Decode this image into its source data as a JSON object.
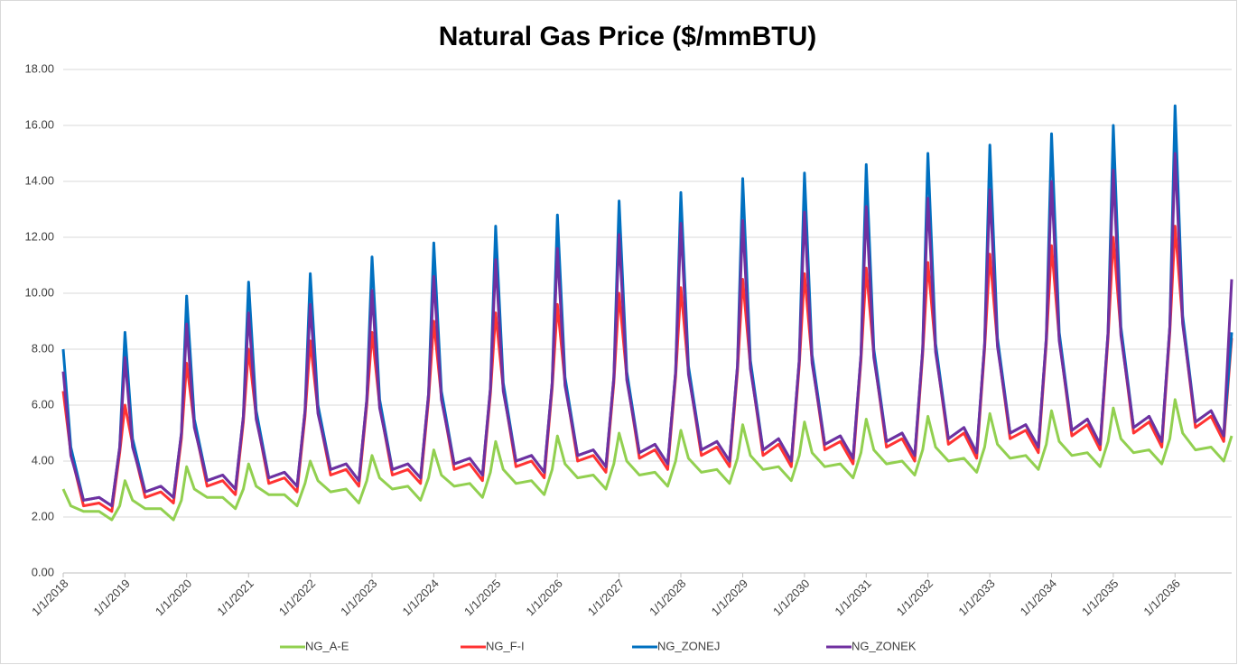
{
  "chart_data": {
    "type": "line",
    "title": "Natural Gas Price ($/mmBTU)",
    "ylim": [
      0,
      18
    ],
    "yticks": [
      {
        "value": 0,
        "label": "0.00"
      },
      {
        "value": 2,
        "label": "2.00"
      },
      {
        "value": 4,
        "label": "4.00"
      },
      {
        "value": 6,
        "label": "6.00"
      },
      {
        "value": 8,
        "label": "8.00"
      },
      {
        "value": 10,
        "label": "10.00"
      },
      {
        "value": 12,
        "label": "12.00"
      },
      {
        "value": 14,
        "label": "14.00"
      },
      {
        "value": 16,
        "label": "16.00"
      },
      {
        "value": 18,
        "label": "18.00"
      }
    ],
    "xlim": [
      "2018-01-01",
      "2036-12-01"
    ],
    "xticks": [
      {
        "value": "2018-01-01",
        "label": "1/1/2018"
      },
      {
        "value": "2019-01-01",
        "label": "1/1/2019"
      },
      {
        "value": "2020-01-01",
        "label": "1/1/2020"
      },
      {
        "value": "2021-01-01",
        "label": "1/1/2021"
      },
      {
        "value": "2022-01-01",
        "label": "1/1/2022"
      },
      {
        "value": "2023-01-01",
        "label": "1/1/2023"
      },
      {
        "value": "2024-01-01",
        "label": "1/1/2024"
      },
      {
        "value": "2025-01-01",
        "label": "1/1/2025"
      },
      {
        "value": "2026-01-01",
        "label": "1/1/2026"
      },
      {
        "value": "2027-01-01",
        "label": "1/1/2027"
      },
      {
        "value": "2028-01-01",
        "label": "1/1/2028"
      },
      {
        "value": "2029-01-01",
        "label": "1/1/2029"
      },
      {
        "value": "2030-01-01",
        "label": "1/1/2030"
      },
      {
        "value": "2031-01-01",
        "label": "1/1/2031"
      },
      {
        "value": "2032-01-01",
        "label": "1/1/2032"
      },
      {
        "value": "2033-01-01",
        "label": "1/1/2033"
      },
      {
        "value": "2034-01-01",
        "label": "1/1/2034"
      },
      {
        "value": "2035-01-01",
        "label": "1/1/2035"
      },
      {
        "value": "2036-01-01",
        "label": "1/1/2036"
      }
    ],
    "grid": true,
    "legend": "bottom",
    "x": [
      "2018-01-01",
      "2018-02-15",
      "2018-05-01",
      "2018-08-01",
      "2018-10-15",
      "2018-12-01",
      "2019-01-01",
      "2019-02-15",
      "2019-05-01",
      "2019-08-01",
      "2019-10-15",
      "2019-12-01",
      "2020-01-01",
      "2020-02-15",
      "2020-05-01",
      "2020-08-01",
      "2020-10-15",
      "2020-12-01",
      "2021-01-01",
      "2021-02-15",
      "2021-05-01",
      "2021-08-01",
      "2021-10-15",
      "2021-12-01",
      "2022-01-01",
      "2022-02-15",
      "2022-05-01",
      "2022-08-01",
      "2022-10-15",
      "2022-12-01",
      "2023-01-01",
      "2023-02-15",
      "2023-05-01",
      "2023-08-01",
      "2023-10-15",
      "2023-12-01",
      "2024-01-01",
      "2024-02-15",
      "2024-05-01",
      "2024-08-01",
      "2024-10-15",
      "2024-12-01",
      "2025-01-01",
      "2025-02-15",
      "2025-05-01",
      "2025-08-01",
      "2025-10-15",
      "2025-12-01",
      "2026-01-01",
      "2026-02-15",
      "2026-05-01",
      "2026-08-01",
      "2026-10-15",
      "2026-12-01",
      "2027-01-01",
      "2027-02-15",
      "2027-05-01",
      "2027-08-01",
      "2027-10-15",
      "2027-12-01",
      "2028-01-01",
      "2028-02-15",
      "2028-05-01",
      "2028-08-01",
      "2028-10-15",
      "2028-12-01",
      "2029-01-01",
      "2029-02-15",
      "2029-05-01",
      "2029-08-01",
      "2029-10-15",
      "2029-12-01",
      "2030-01-01",
      "2030-02-15",
      "2030-05-01",
      "2030-08-01",
      "2030-10-15",
      "2030-12-01",
      "2031-01-01",
      "2031-02-15",
      "2031-05-01",
      "2031-08-01",
      "2031-10-15",
      "2031-12-01",
      "2032-01-01",
      "2032-02-15",
      "2032-05-01",
      "2032-08-01",
      "2032-10-15",
      "2032-12-01",
      "2033-01-01",
      "2033-02-15",
      "2033-05-01",
      "2033-08-01",
      "2033-10-15",
      "2033-12-01",
      "2034-01-01",
      "2034-02-15",
      "2034-05-01",
      "2034-08-01",
      "2034-10-15",
      "2034-12-01",
      "2035-01-01",
      "2035-02-15",
      "2035-05-01",
      "2035-08-01",
      "2035-10-15",
      "2035-12-01",
      "2036-01-01",
      "2036-02-15",
      "2036-05-01",
      "2036-08-01",
      "2036-10-15",
      "2036-12-01"
    ],
    "series": [
      {
        "name": "NG_A-E",
        "color": "#92d050",
        "values": [
          3.0,
          2.4,
          2.2,
          2.2,
          1.9,
          2.4,
          3.3,
          2.6,
          2.3,
          2.3,
          1.9,
          2.6,
          3.8,
          3.0,
          2.7,
          2.7,
          2.3,
          3.0,
          3.9,
          3.1,
          2.8,
          2.8,
          2.4,
          3.2,
          4.0,
          3.3,
          2.9,
          3.0,
          2.5,
          3.3,
          4.2,
          3.4,
          3.0,
          3.1,
          2.6,
          3.4,
          4.4,
          3.5,
          3.1,
          3.2,
          2.7,
          3.6,
          4.7,
          3.7,
          3.2,
          3.3,
          2.8,
          3.7,
          4.9,
          3.9,
          3.4,
          3.5,
          3.0,
          3.9,
          5.0,
          4.0,
          3.5,
          3.6,
          3.1,
          4.0,
          5.1,
          4.1,
          3.6,
          3.7,
          3.2,
          4.1,
          5.3,
          4.2,
          3.7,
          3.8,
          3.3,
          4.2,
          5.4,
          4.3,
          3.8,
          3.9,
          3.4,
          4.3,
          5.5,
          4.4,
          3.9,
          4.0,
          3.5,
          4.4,
          5.6,
          4.5,
          4.0,
          4.1,
          3.6,
          4.5,
          5.7,
          4.6,
          4.1,
          4.2,
          3.7,
          4.6,
          5.8,
          4.7,
          4.2,
          4.3,
          3.8,
          4.7,
          5.9,
          4.8,
          4.3,
          4.4,
          3.9,
          4.8,
          6.2,
          5.0,
          4.4,
          4.5,
          4.0,
          4.9
        ]
      },
      {
        "name": "NG_F-I",
        "color": "#ff3333",
        "values": [
          6.5,
          4.3,
          2.4,
          2.5,
          2.2,
          4.3,
          6.0,
          4.6,
          2.7,
          2.9,
          2.5,
          4.8,
          7.5,
          5.3,
          3.1,
          3.3,
          2.8,
          5.4,
          8.0,
          5.6,
          3.2,
          3.4,
          2.9,
          5.6,
          8.3,
          5.8,
          3.5,
          3.7,
          3.1,
          6.0,
          8.6,
          6.0,
          3.5,
          3.7,
          3.2,
          6.2,
          9.0,
          6.3,
          3.7,
          3.9,
          3.3,
          6.4,
          9.3,
          6.6,
          3.8,
          4.0,
          3.4,
          6.6,
          9.6,
          6.8,
          4.0,
          4.2,
          3.6,
          6.8,
          10.0,
          7.0,
          4.1,
          4.4,
          3.7,
          7.0,
          10.2,
          7.2,
          4.2,
          4.5,
          3.8,
          7.2,
          10.5,
          7.4,
          4.2,
          4.6,
          3.8,
          7.4,
          10.7,
          7.6,
          4.4,
          4.7,
          3.9,
          7.6,
          10.9,
          7.8,
          4.5,
          4.8,
          4.0,
          7.8,
          11.1,
          8.0,
          4.6,
          5.0,
          4.1,
          8.0,
          11.4,
          8.2,
          4.8,
          5.1,
          4.3,
          8.2,
          11.7,
          8.4,
          4.9,
          5.3,
          4.4,
          8.4,
          12.0,
          8.6,
          5.0,
          5.4,
          4.5,
          8.6,
          12.4,
          9.0,
          5.2,
          5.6,
          4.7,
          8.4
        ]
      },
      {
        "name": "NG_ZONEJ",
        "color": "#0070c0",
        "values": [
          8.0,
          4.5,
          2.6,
          2.7,
          2.4,
          4.5,
          8.6,
          4.8,
          2.9,
          3.1,
          2.7,
          5.0,
          9.9,
          5.5,
          3.3,
          3.5,
          3.0,
          5.6,
          10.4,
          5.8,
          3.4,
          3.6,
          3.1,
          5.8,
          10.7,
          6.0,
          3.7,
          3.9,
          3.3,
          6.2,
          11.3,
          6.2,
          3.7,
          3.9,
          3.4,
          6.4,
          11.8,
          6.5,
          3.9,
          4.1,
          3.5,
          6.6,
          12.4,
          6.8,
          4.0,
          4.2,
          3.6,
          6.8,
          12.8,
          7.0,
          4.2,
          4.4,
          3.8,
          7.0,
          13.3,
          7.2,
          4.3,
          4.6,
          3.9,
          7.2,
          13.6,
          7.4,
          4.4,
          4.7,
          4.0,
          7.4,
          14.1,
          7.6,
          4.4,
          4.8,
          4.0,
          7.6,
          14.3,
          7.8,
          4.6,
          4.9,
          4.1,
          7.8,
          14.6,
          8.0,
          4.7,
          5.0,
          4.2,
          8.0,
          15.0,
          8.2,
          4.8,
          5.2,
          4.3,
          8.2,
          15.3,
          8.4,
          5.0,
          5.3,
          4.5,
          8.4,
          15.7,
          8.6,
          5.1,
          5.5,
          4.6,
          8.6,
          16.0,
          8.8,
          5.2,
          5.6,
          4.7,
          8.8,
          16.7,
          9.2,
          5.4,
          5.8,
          4.9,
          8.6
        ]
      },
      {
        "name": "NG_ZONEK",
        "color": "#7030a0",
        "values": [
          7.2,
          4.2,
          2.6,
          2.7,
          2.4,
          4.5,
          7.7,
          4.5,
          2.9,
          3.1,
          2.7,
          5.0,
          8.9,
          5.2,
          3.3,
          3.5,
          3.0,
          5.6,
          9.3,
          5.5,
          3.4,
          3.6,
          3.1,
          5.8,
          9.6,
          5.7,
          3.7,
          3.9,
          3.3,
          6.2,
          10.1,
          5.9,
          3.7,
          3.9,
          3.4,
          6.4,
          10.6,
          6.2,
          3.9,
          4.1,
          3.5,
          6.6,
          11.2,
          6.5,
          4.0,
          4.2,
          3.6,
          6.8,
          11.6,
          6.7,
          4.2,
          4.4,
          3.8,
          7.0,
          12.1,
          6.9,
          4.3,
          4.6,
          3.9,
          7.2,
          12.5,
          7.1,
          4.4,
          4.7,
          4.0,
          7.4,
          12.6,
          7.3,
          4.4,
          4.8,
          4.0,
          7.6,
          12.9,
          7.5,
          4.6,
          4.9,
          4.1,
          7.8,
          13.1,
          7.7,
          4.7,
          5.0,
          4.2,
          8.0,
          13.4,
          7.9,
          4.8,
          5.2,
          4.3,
          8.2,
          13.7,
          8.1,
          5.0,
          5.3,
          4.5,
          8.4,
          14.0,
          8.3,
          5.1,
          5.5,
          4.6,
          8.6,
          14.4,
          8.5,
          5.2,
          5.6,
          4.7,
          8.8,
          15.0,
          8.9,
          5.4,
          5.8,
          4.9,
          10.5
        ]
      }
    ]
  }
}
